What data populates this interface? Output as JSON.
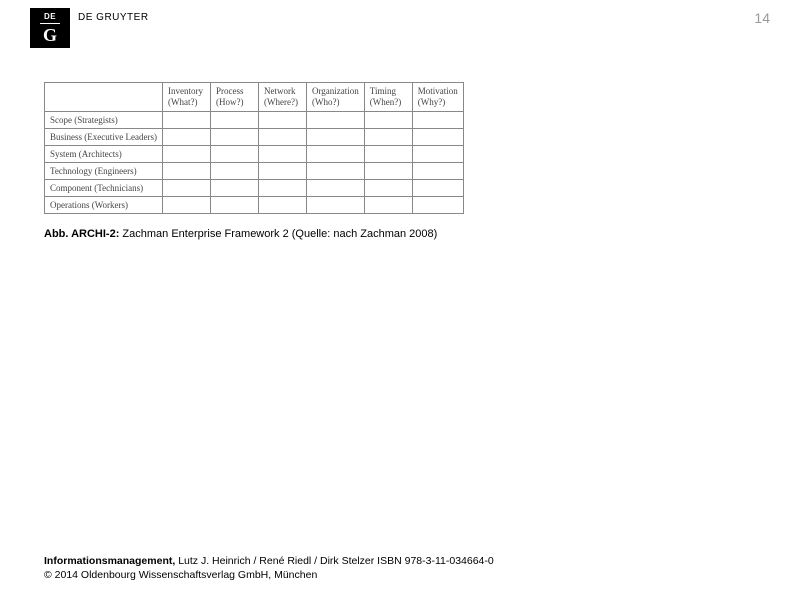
{
  "header": {
    "logo_top": "DE",
    "logo_letter": "G",
    "publisher": "DE GRUYTER"
  },
  "page_number": "14",
  "table": {
    "columns": [
      {
        "line1": "Inventory",
        "line2": "(What?)"
      },
      {
        "line1": "Process",
        "line2": "(How?)"
      },
      {
        "line1": "Network",
        "line2": "(Where?)"
      },
      {
        "line1": "Organization",
        "line2": "(Who?)"
      },
      {
        "line1": "Timing",
        "line2": "(When?)"
      },
      {
        "line1": "Motivation",
        "line2": "(Why?)"
      }
    ],
    "rows": [
      "Scope (Strategists)",
      "Business (Executive Leaders)",
      "System (Architects)",
      "Technology (Engineers)",
      "Component (Technicians)",
      "Operations (Workers)"
    ]
  },
  "caption": {
    "label": "Abb. ARCHI-2:",
    "text": " Zachman Enterprise Framework 2 (Quelle: nach Zachman 2008)"
  },
  "footer": {
    "title": "Informationsmanagement,",
    "authors": " Lutz J. Heinrich / René Riedl / Dirk Stelzer ISBN 978-3-11-034664-0",
    "copyright": "© 2014 Oldenbourg Wissenschaftsverlag GmbH, München"
  }
}
